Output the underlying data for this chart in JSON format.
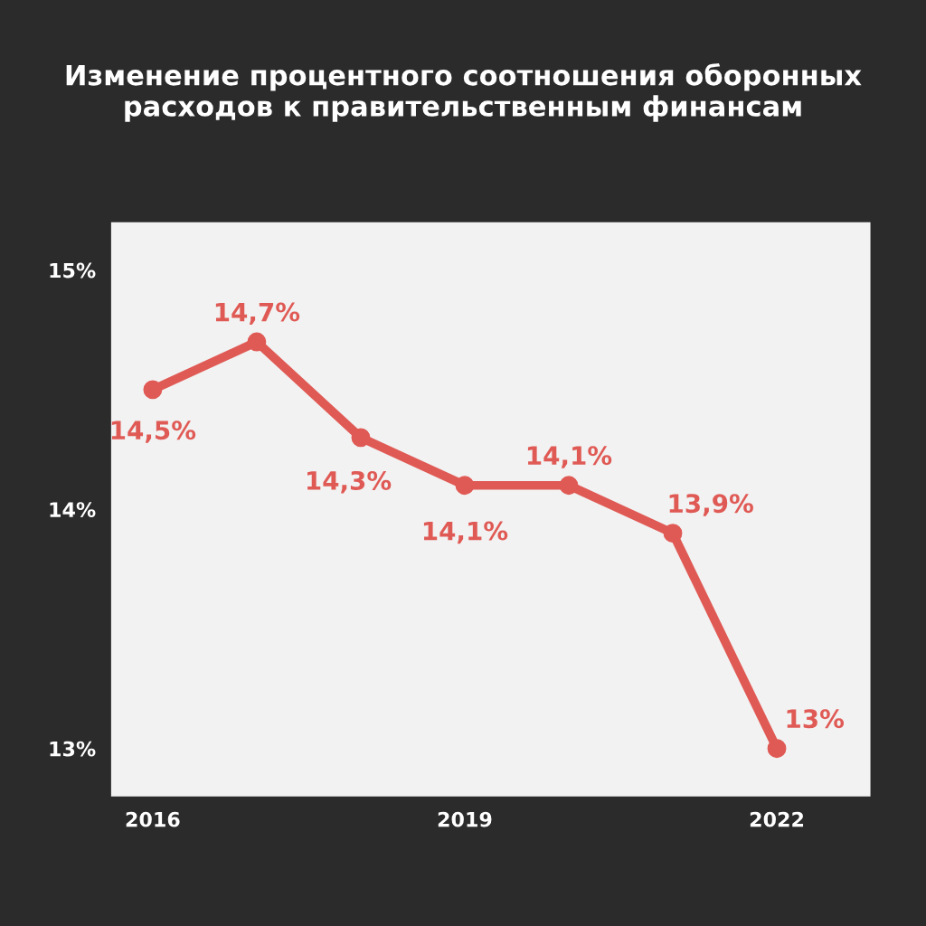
{
  "chart_data": {
    "type": "line",
    "title": "Изменение процентного соотношения оборонных расходов к правительственным финансам",
    "x": [
      2016,
      2017,
      2018,
      2019,
      2020,
      2021,
      2022
    ],
    "series": [
      {
        "color": "#e05a55",
        "values": [
          14.5,
          14.7,
          14.3,
          14.1,
          14.1,
          13.9,
          13.0
        ],
        "value_labels": [
          "14,5%",
          "14,7%",
          "14,3%",
          "14,1%",
          "14,1%",
          "13,9%",
          "13%"
        ]
      }
    ],
    "xlim": [
      2015.6,
      2022.9
    ],
    "xticks": [
      2016,
      2019,
      2022
    ],
    "ylim": [
      12.8,
      15.2
    ],
    "yticks": [
      {
        "value": 13,
        "label": "13%"
      },
      {
        "value": 14,
        "label": "14%"
      },
      {
        "value": 15,
        "label": "15%"
      }
    ],
    "marker": "circle",
    "grid": false,
    "legend": false
  }
}
